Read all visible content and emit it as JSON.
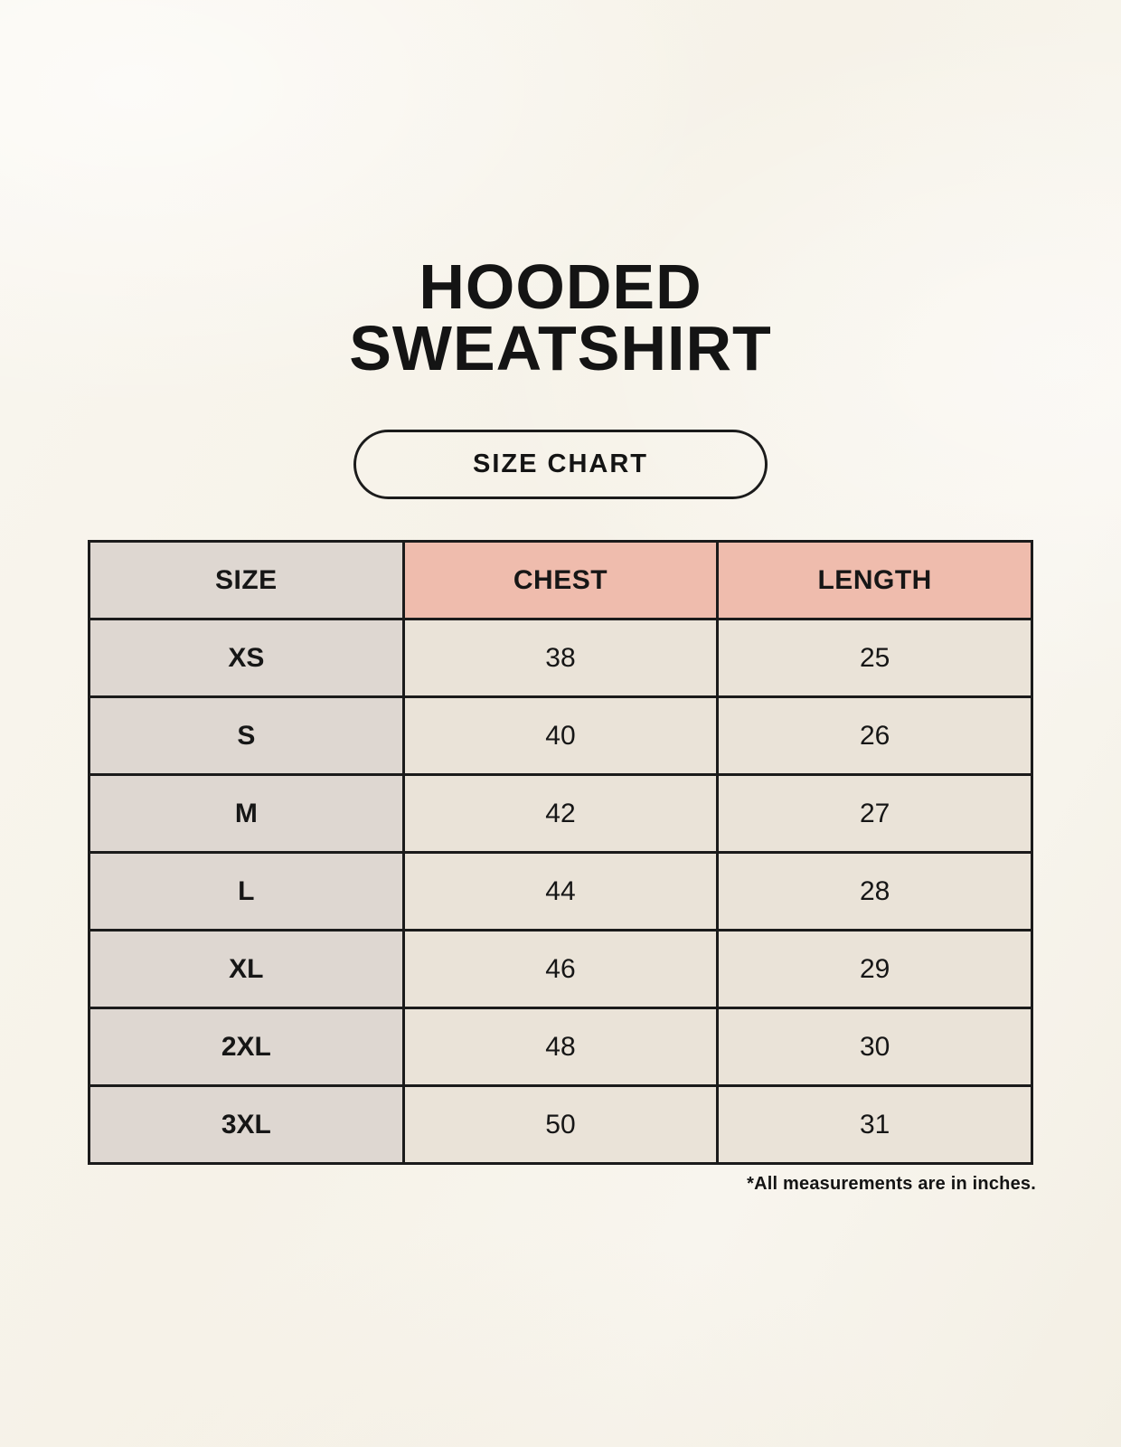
{
  "title": {
    "line1": "HOODED",
    "line2": "SWEATSHIRT"
  },
  "badge": {
    "label": "SIZE CHART"
  },
  "table": {
    "headers": [
      "SIZE",
      "CHEST",
      "LENGTH"
    ],
    "rows": [
      {
        "size": "XS",
        "chest": "38",
        "length": "25"
      },
      {
        "size": "S",
        "chest": "40",
        "length": "26"
      },
      {
        "size": "M",
        "chest": "42",
        "length": "27"
      },
      {
        "size": "L",
        "chest": "44",
        "length": "28"
      },
      {
        "size": "XL",
        "chest": "46",
        "length": "29"
      },
      {
        "size": "2XL",
        "chest": "48",
        "length": "30"
      },
      {
        "size": "3XL",
        "chest": "50",
        "length": "31"
      }
    ]
  },
  "footnote": "*All measurements are in inches.",
  "colors": {
    "page_background": "#f7f4ec",
    "header_accent": "#efbcad",
    "size_column_bg": "#ded7d1",
    "cell_bg": "#eae3d8",
    "border": "#1b1b1b",
    "text": "#161616"
  },
  "chart_data": {
    "type": "table",
    "title": "HOODED SWEATSHIRT",
    "subtitle": "SIZE CHART",
    "columns": [
      "SIZE",
      "CHEST",
      "LENGTH"
    ],
    "rows": [
      [
        "XS",
        38,
        25
      ],
      [
        "S",
        40,
        26
      ],
      [
        "M",
        42,
        27
      ],
      [
        "L",
        44,
        28
      ],
      [
        "XL",
        46,
        29
      ],
      [
        "2XL",
        48,
        30
      ],
      [
        "3XL",
        50,
        31
      ]
    ],
    "note": "*All measurements are in inches.",
    "layout_hints": {
      "header_fill_size_col": "#ded7d1",
      "header_fill_measure_cols": "#efbcad",
      "grid": "on"
    }
  }
}
